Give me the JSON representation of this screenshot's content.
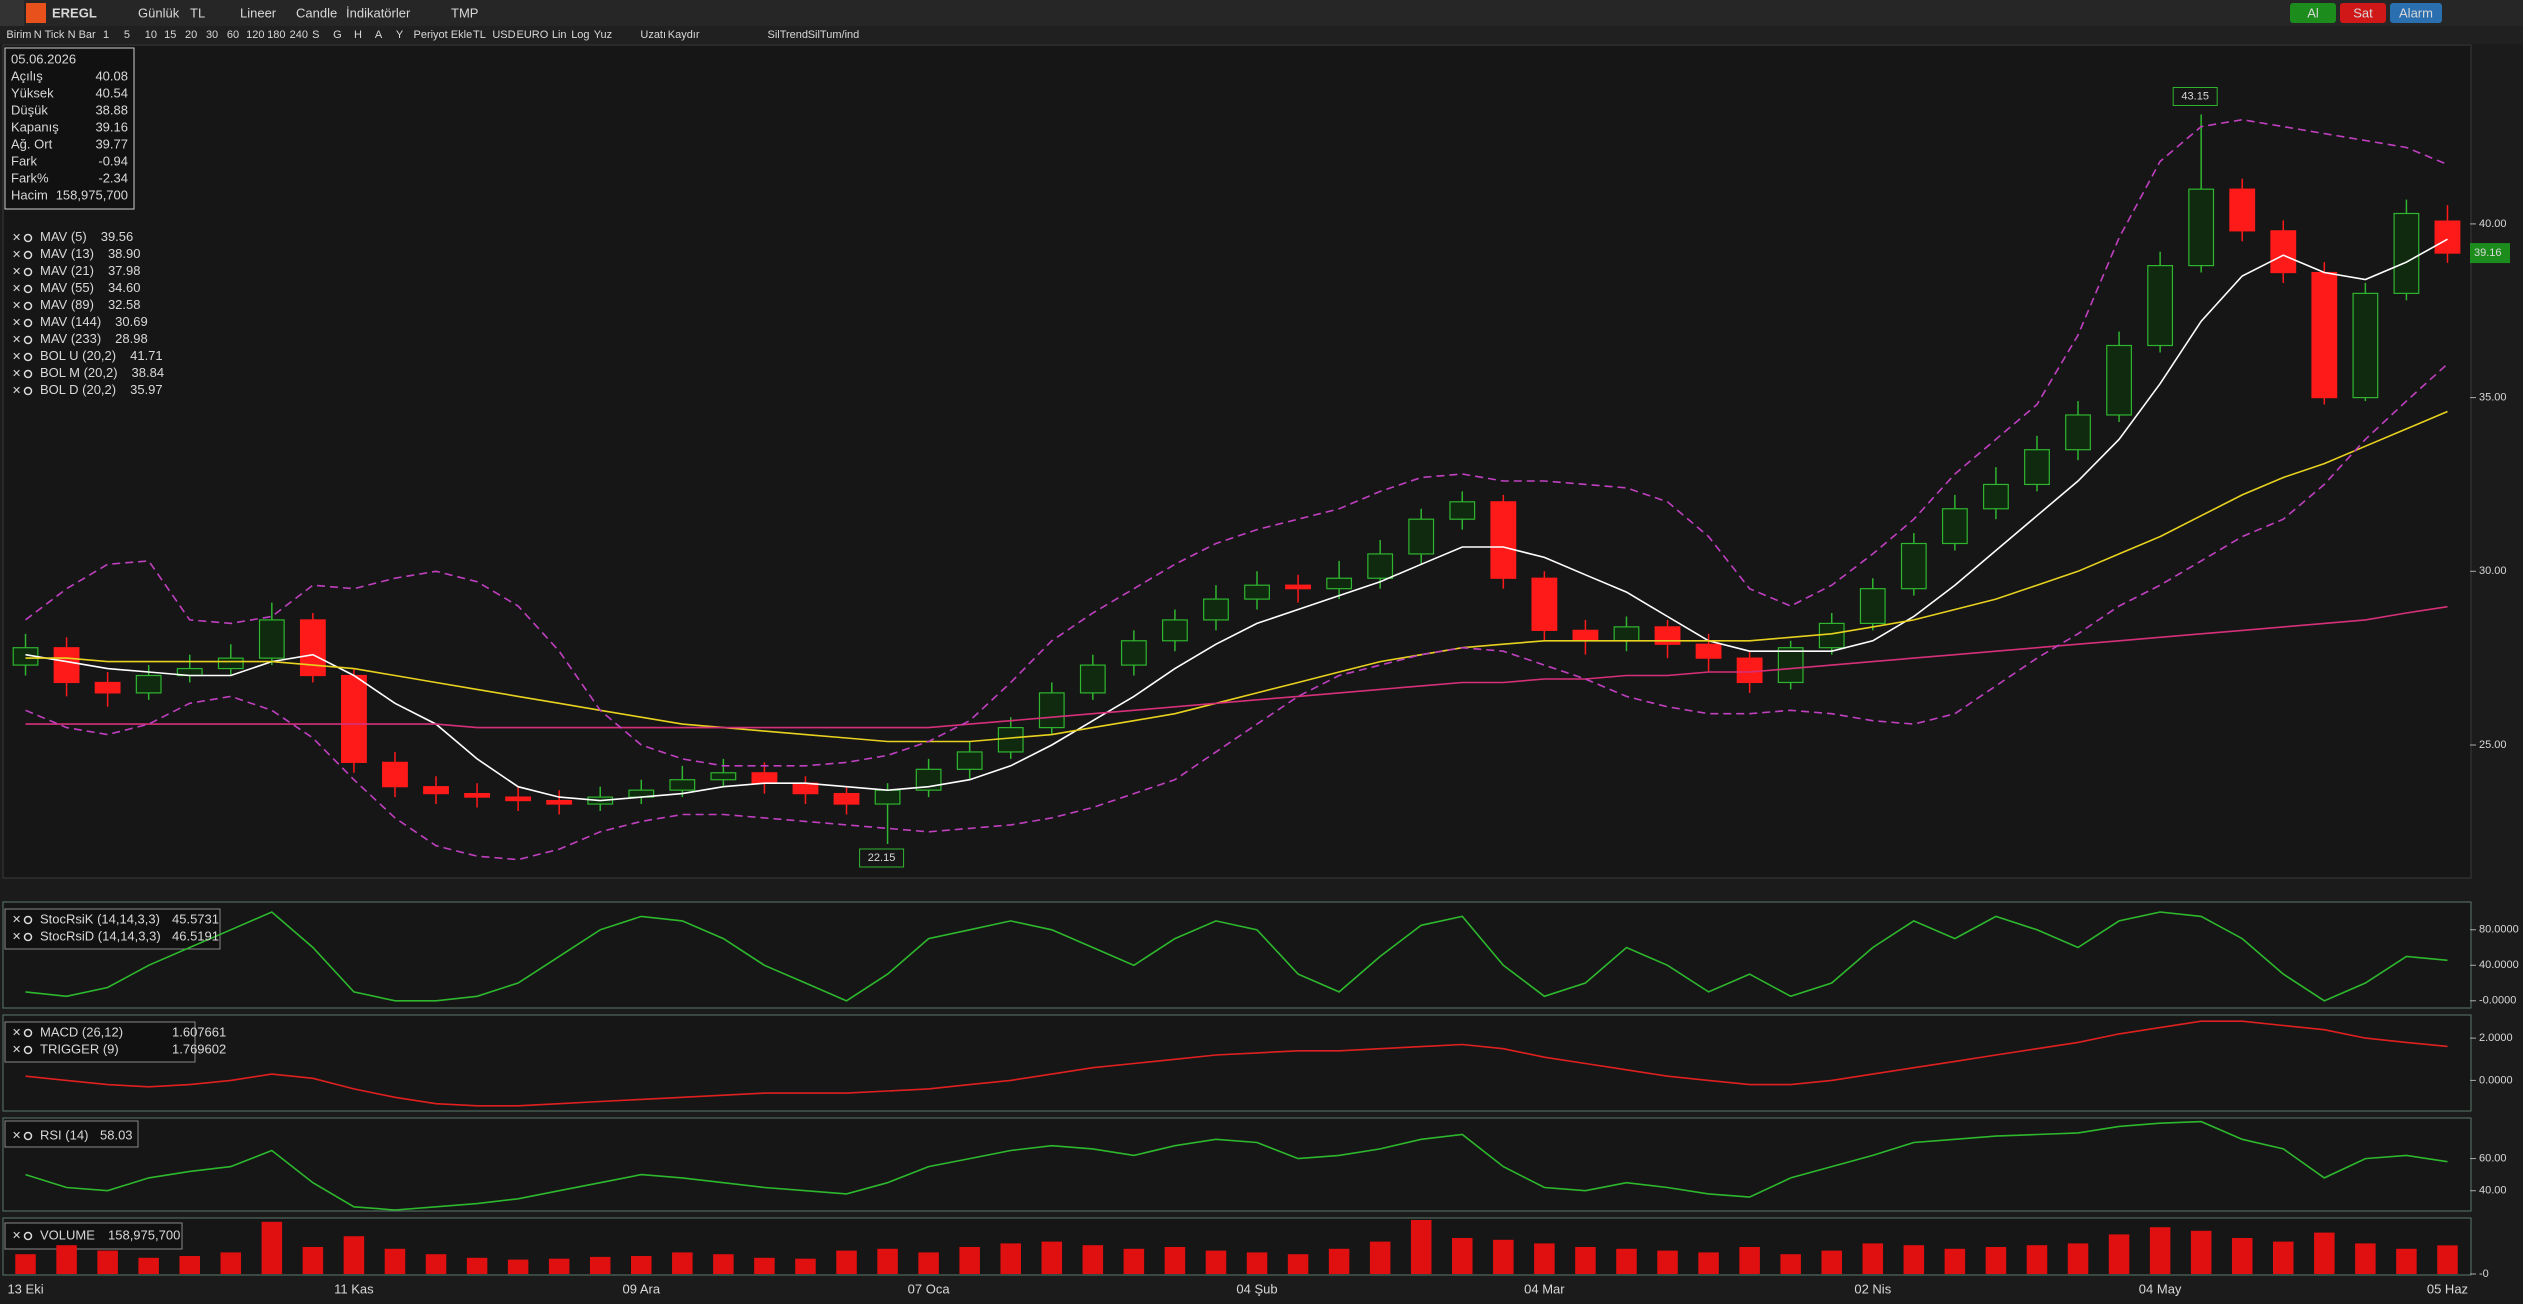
{
  "toolbar": {
    "symbol": "EREGL",
    "items": [
      "Günlük",
      "TL",
      "Lineer",
      "Candle",
      "İndikatörler",
      "TMP"
    ],
    "buttons": [
      "Al",
      "Sat",
      "Alarm"
    ]
  },
  "period_bar": [
    "Birim",
    "N Tick",
    "N Bar",
    "1",
    "5",
    "10",
    "15",
    "20",
    "30",
    "60",
    "120",
    "180",
    "240",
    "S",
    "G",
    "H",
    "A",
    "Y",
    "Periyot Ekle",
    "TL",
    "USD",
    "EURO",
    "Lin",
    "Log",
    "Yuz",
    "Uzatı",
    "Kaydır",
    "SilTrend",
    "SilTum/ind"
  ],
  "info_panel": {
    "date": "05.06.2026",
    "rows": [
      [
        "Açılış",
        "40.08"
      ],
      [
        "Yüksek",
        "40.54"
      ],
      [
        "Düşük",
        "38.88"
      ],
      [
        "Kapanış",
        "39.16"
      ],
      [
        "Ağ. Ort",
        "39.77"
      ],
      [
        "Fark",
        "-0.94"
      ],
      [
        "Fark%",
        "-2.34"
      ],
      [
        "Hacim",
        "158,975,700"
      ]
    ]
  },
  "chart_data": [
    {
      "type": "candlestick",
      "categories": [
        "13 Eki",
        null,
        null,
        null,
        null,
        null,
        null,
        null,
        "11 Kas",
        null,
        null,
        null,
        null,
        null,
        null,
        "09 Ara",
        null,
        null,
        null,
        null,
        null,
        null,
        "07 Oca",
        null,
        null,
        null,
        null,
        null,
        null,
        null,
        "04 Şub",
        null,
        null,
        null,
        null,
        null,
        null,
        "04 Mar",
        null,
        null,
        null,
        null,
        null,
        null,
        null,
        "02 Nis",
        null,
        null,
        null,
        null,
        null,
        null,
        "04 May",
        null,
        null,
        null,
        null,
        null,
        null,
        "05 Haz"
      ],
      "open": [
        27.3,
        27.8,
        26.8,
        26.5,
        27.0,
        27.2,
        27.5,
        28.6,
        27.0,
        24.5,
        23.8,
        23.6,
        23.5,
        23.4,
        23.3,
        23.5,
        23.7,
        24.0,
        24.2,
        23.9,
        23.6,
        23.3,
        23.7,
        24.3,
        24.8,
        25.5,
        26.5,
        27.3,
        28.0,
        28.6,
        29.2,
        29.6,
        29.5,
        29.8,
        30.5,
        31.5,
        32.0,
        29.8,
        28.3,
        28.0,
        28.4,
        27.9,
        27.5,
        26.8,
        27.8,
        28.5,
        29.5,
        30.8,
        31.8,
        32.5,
        33.5,
        34.5,
        36.5,
        38.8,
        41.0,
        39.8,
        38.6,
        35.0,
        38.0,
        40.08
      ],
      "high": [
        28.2,
        28.1,
        27.1,
        27.3,
        27.6,
        27.9,
        29.1,
        28.8,
        27.2,
        24.8,
        24.1,
        23.9,
        23.8,
        23.7,
        23.8,
        24.0,
        24.4,
        24.6,
        24.5,
        24.1,
        23.8,
        23.9,
        24.6,
        25.1,
        25.8,
        26.8,
        27.6,
        28.3,
        28.9,
        29.6,
        30.0,
        29.9,
        30.3,
        30.9,
        31.8,
        32.3,
        32.2,
        30.0,
        28.6,
        28.7,
        28.6,
        28.2,
        27.7,
        28.0,
        28.8,
        29.8,
        31.1,
        32.2,
        33.0,
        33.9,
        34.9,
        36.9,
        39.2,
        43.15,
        41.3,
        40.1,
        38.9,
        38.3,
        40.7,
        40.54
      ],
      "low": [
        27.0,
        26.4,
        26.1,
        26.3,
        26.8,
        27.0,
        27.3,
        26.8,
        24.2,
        23.5,
        23.3,
        23.2,
        23.1,
        23.0,
        23.1,
        23.3,
        23.5,
        23.8,
        23.6,
        23.3,
        23.0,
        22.15,
        23.5,
        24.0,
        24.6,
        25.3,
        26.3,
        27.0,
        27.7,
        28.3,
        28.9,
        29.1,
        29.2,
        29.5,
        30.2,
        31.2,
        29.5,
        28.0,
        27.6,
        27.7,
        27.5,
        27.1,
        26.5,
        26.6,
        27.6,
        28.3,
        29.3,
        30.6,
        31.5,
        32.3,
        33.2,
        34.3,
        36.3,
        38.6,
        39.5,
        38.3,
        34.8,
        34.9,
        37.8,
        38.88
      ],
      "close": [
        27.8,
        26.8,
        26.5,
        27.0,
        27.2,
        27.5,
        28.6,
        27.0,
        24.5,
        23.8,
        23.6,
        23.5,
        23.4,
        23.3,
        23.5,
        23.7,
        24.0,
        24.2,
        23.9,
        23.6,
        23.3,
        23.7,
        24.3,
        24.8,
        25.5,
        26.5,
        27.3,
        28.0,
        28.6,
        29.2,
        29.6,
        29.5,
        29.8,
        30.5,
        31.5,
        32.0,
        29.8,
        28.3,
        28.0,
        28.4,
        27.9,
        27.5,
        26.8,
        27.8,
        28.5,
        29.5,
        30.8,
        31.8,
        32.5,
        33.5,
        34.5,
        36.5,
        38.8,
        41.0,
        39.8,
        38.6,
        35.0,
        38.0,
        40.3,
        39.16
      ],
      "up_color": "#2fb52f",
      "down_color": "#ff1a1a",
      "ylim": [
        21.2,
        45.15
      ],
      "yticks": [
        {
          "value": 25,
          "label": "25.00"
        },
        {
          "value": 30,
          "label": "30.00"
        },
        {
          "value": 35,
          "label": "35.00"
        },
        {
          "value": 40,
          "label": "40.00"
        }
      ],
      "legend": [
        {
          "name": "MAV (5)",
          "value": "39.56",
          "color": "#ffffff",
          "values": [
            27.6,
            27.4,
            27.2,
            27.1,
            27.0,
            27.0,
            27.4,
            27.6,
            27.0,
            26.2,
            25.6,
            24.6,
            23.8,
            23.5,
            23.4,
            23.5,
            23.6,
            23.8,
            23.9,
            23.9,
            23.8,
            23.7,
            23.8,
            24.0,
            24.4,
            25.0,
            25.7,
            26.4,
            27.2,
            27.9,
            28.5,
            28.9,
            29.3,
            29.7,
            30.2,
            30.7,
            30.7,
            30.4,
            29.9,
            29.4,
            28.7,
            28.0,
            27.7,
            27.7,
            27.7,
            28.0,
            28.7,
            29.6,
            30.6,
            31.6,
            32.6,
            33.8,
            35.4,
            37.2,
            38.5,
            39.1,
            38.6,
            38.4,
            38.9,
            39.56
          ]
        },
        {
          "name": "MAV (13)",
          "value": "38.90",
          "color": "#1fb5c9"
        },
        {
          "name": "MAV (21)",
          "value": "37.98",
          "color": "#5b7bd5"
        },
        {
          "name": "MAV (55)",
          "value": "34.60",
          "color": "#e8d21f",
          "values": [
            27.5,
            27.5,
            27.4,
            27.4,
            27.4,
            27.4,
            27.4,
            27.3,
            27.2,
            27.0,
            26.8,
            26.6,
            26.4,
            26.2,
            26.0,
            25.8,
            25.6,
            25.5,
            25.4,
            25.3,
            25.2,
            25.1,
            25.1,
            25.1,
            25.2,
            25.3,
            25.5,
            25.7,
            25.9,
            26.2,
            26.5,
            26.8,
            27.1,
            27.4,
            27.6,
            27.8,
            27.9,
            28.0,
            28.0,
            28.0,
            28.0,
            28.0,
            28.0,
            28.1,
            28.2,
            28.4,
            28.6,
            28.9,
            29.2,
            29.6,
            30.0,
            30.5,
            31.0,
            31.6,
            32.2,
            32.7,
            33.1,
            33.6,
            34.1,
            34.6
          ]
        },
        {
          "name": "MAV (89)",
          "value": "32.58",
          "color": "#e0a030"
        },
        {
          "name": "MAV (144)",
          "value": "30.69",
          "color": "#e06a2a"
        },
        {
          "name": "MAV (233)",
          "value": "28.98",
          "color": "#d6307a",
          "values": [
            25.6,
            25.6,
            25.6,
            25.6,
            25.6,
            25.6,
            25.6,
            25.6,
            25.6,
            25.6,
            25.6,
            25.5,
            25.5,
            25.5,
            25.5,
            25.5,
            25.5,
            25.5,
            25.5,
            25.5,
            25.5,
            25.5,
            25.5,
            25.6,
            25.7,
            25.8,
            25.9,
            26.0,
            26.1,
            26.2,
            26.3,
            26.4,
            26.5,
            26.6,
            26.7,
            26.8,
            26.8,
            26.9,
            26.9,
            27.0,
            27.0,
            27.1,
            27.1,
            27.2,
            27.3,
            27.4,
            27.5,
            27.6,
            27.7,
            27.8,
            27.9,
            28.0,
            28.1,
            28.2,
            28.3,
            28.4,
            28.5,
            28.6,
            28.8,
            28.98
          ]
        },
        {
          "name": "BOL U (20,2)",
          "value": "41.71",
          "color": "#c040c0",
          "dashed": true,
          "values": [
            28.6,
            29.5,
            30.2,
            30.3,
            28.6,
            28.5,
            28.7,
            29.6,
            29.5,
            29.8,
            30.0,
            29.7,
            29.0,
            27.7,
            26.0,
            25.0,
            24.6,
            24.4,
            24.4,
            24.4,
            24.5,
            24.7,
            25.1,
            25.7,
            26.8,
            28.0,
            28.8,
            29.5,
            30.2,
            30.8,
            31.2,
            31.5,
            31.8,
            32.3,
            32.7,
            32.8,
            32.6,
            32.6,
            32.5,
            32.4,
            32.0,
            31.0,
            29.5,
            29.0,
            29.6,
            30.5,
            31.5,
            32.8,
            33.8,
            34.8,
            36.8,
            39.6,
            41.8,
            42.8,
            43.0,
            42.8,
            42.6,
            42.4,
            42.2,
            41.71
          ]
        },
        {
          "name": "BOL M (20,2)",
          "value": "38.84",
          "color": "#c040c0"
        },
        {
          "name": "BOL D (20,2)",
          "value": "35.97",
          "color": "#c040c0",
          "dashed": true,
          "values": [
            26.0,
            25.5,
            25.3,
            25.6,
            26.2,
            26.4,
            26.0,
            25.2,
            24.0,
            22.9,
            22.1,
            21.8,
            21.7,
            22.0,
            22.5,
            22.8,
            23.0,
            23.0,
            22.9,
            22.8,
            22.7,
            22.6,
            22.5,
            22.6,
            22.7,
            22.9,
            23.2,
            23.6,
            24.0,
            24.8,
            25.6,
            26.4,
            27.0,
            27.3,
            27.6,
            27.8,
            27.7,
            27.3,
            26.9,
            26.4,
            26.1,
            25.9,
            25.9,
            26.0,
            25.9,
            25.7,
            25.6,
            25.9,
            26.7,
            27.5,
            28.2,
            29.0,
            29.6,
            30.3,
            31.0,
            31.5,
            32.5,
            33.8,
            34.9,
            35.97
          ]
        }
      ]
    },
    {
      "type": "line",
      "ylim": [
        -7,
        109
      ],
      "yticks": [
        {
          "value": 80,
          "label": "80.0000"
        },
        {
          "value": 40,
          "label": "40.0000"
        },
        {
          "value": 0,
          "label": "-0.0000"
        }
      ],
      "series": [
        {
          "name": "StocRsiK (14,14,3,3)",
          "value": "45.5731",
          "color": "#2db82d",
          "values": [
            10,
            5,
            15,
            40,
            60,
            80,
            100,
            60,
            10,
            0,
            0,
            5,
            20,
            50,
            80,
            95,
            90,
            70,
            40,
            20,
            0,
            30,
            70,
            80,
            90,
            80,
            60,
            40,
            70,
            90,
            80,
            30,
            10,
            50,
            85,
            95,
            40,
            5,
            20,
            60,
            40,
            10,
            30,
            5,
            20,
            60,
            90,
            70,
            95,
            80,
            60,
            90,
            100,
            95,
            70,
            30,
            0,
            20,
            50,
            45.5731
          ]
        },
        {
          "name": "StocRsiD (14,14,3,3)",
          "value": "46.5191",
          "color": "#29b6d8"
        }
      ]
    },
    {
      "type": "line",
      "ylim": [
        -1.4,
        3.0
      ],
      "yticks": [
        {
          "value": 2,
          "label": "2.0000"
        },
        {
          "value": 0,
          "label": "0.0000"
        }
      ],
      "series": [
        {
          "name": "MACD (26,12)",
          "value": "1.607661",
          "color": "#e02020",
          "values": [
            0.2,
            0,
            -0.2,
            -0.3,
            -0.2,
            0.0,
            0.3,
            0.1,
            -0.4,
            -0.8,
            -1.1,
            -1.2,
            -1.2,
            -1.1,
            -1.0,
            -0.9,
            -0.8,
            -0.7,
            -0.6,
            -0.6,
            -0.6,
            -0.5,
            -0.4,
            -0.2,
            0.0,
            0.3,
            0.6,
            0.8,
            1.0,
            1.2,
            1.3,
            1.4,
            1.4,
            1.5,
            1.6,
            1.7,
            1.5,
            1.1,
            0.8,
            0.5,
            0.2,
            0.0,
            -0.2,
            -0.2,
            0.0,
            0.3,
            0.6,
            0.9,
            1.2,
            1.5,
            1.8,
            2.2,
            2.5,
            2.8,
            2.8,
            2.6,
            2.4,
            2.0,
            1.8,
            1.607661
          ]
        },
        {
          "name": "TRIGGER (9)",
          "value": "1.769602",
          "color": "#29b6d8"
        }
      ]
    },
    {
      "type": "line",
      "ylim": [
        28,
        84
      ],
      "yticks": [
        {
          "value": 60,
          "label": "60.00"
        },
        {
          "value": 40,
          "label": "40.00"
        }
      ],
      "series": [
        {
          "name": "RSI (14)",
          "value": "58.03",
          "color": "#2db82d",
          "values": [
            50,
            42,
            40,
            48,
            52,
            55,
            65,
            45,
            30,
            28,
            30,
            32,
            35,
            40,
            45,
            50,
            48,
            45,
            42,
            40,
            38,
            45,
            55,
            60,
            65,
            68,
            66,
            62,
            68,
            72,
            70,
            60,
            62,
            66,
            72,
            75,
            55,
            42,
            40,
            45,
            42,
            38,
            36,
            48,
            55,
            62,
            70,
            72,
            74,
            75,
            76,
            80,
            82,
            83,
            72,
            66,
            48,
            60,
            62,
            58.03
          ]
        }
      ]
    },
    {
      "type": "bar",
      "ylim": [
        0,
        300000000
      ],
      "yticks": [
        {
          "value": 0,
          "label": "-0"
        }
      ],
      "series": [
        {
          "name": "VOLUME",
          "value": "158,975,700",
          "color": "#e01010",
          "values": [
            110000000,
            160000000,
            130000000,
            90000000,
            100000000,
            120000000,
            290000000,
            150000000,
            210000000,
            140000000,
            110000000,
            90000000,
            80000000,
            85000000,
            95000000,
            100000000,
            120000000,
            110000000,
            90000000,
            85000000,
            130000000,
            140000000,
            120000000,
            150000000,
            170000000,
            180000000,
            160000000,
            140000000,
            150000000,
            130000000,
            120000000,
            110000000,
            140000000,
            180000000,
            300000000,
            200000000,
            190000000,
            170000000,
            150000000,
            140000000,
            130000000,
            120000000,
            150000000,
            110000000,
            130000000,
            170000000,
            160000000,
            140000000,
            150000000,
            160000000,
            170000000,
            220000000,
            260000000,
            240000000,
            200000000,
            180000000,
            230000000,
            170000000,
            140000000,
            158975700
          ]
        }
      ]
    }
  ]
}
